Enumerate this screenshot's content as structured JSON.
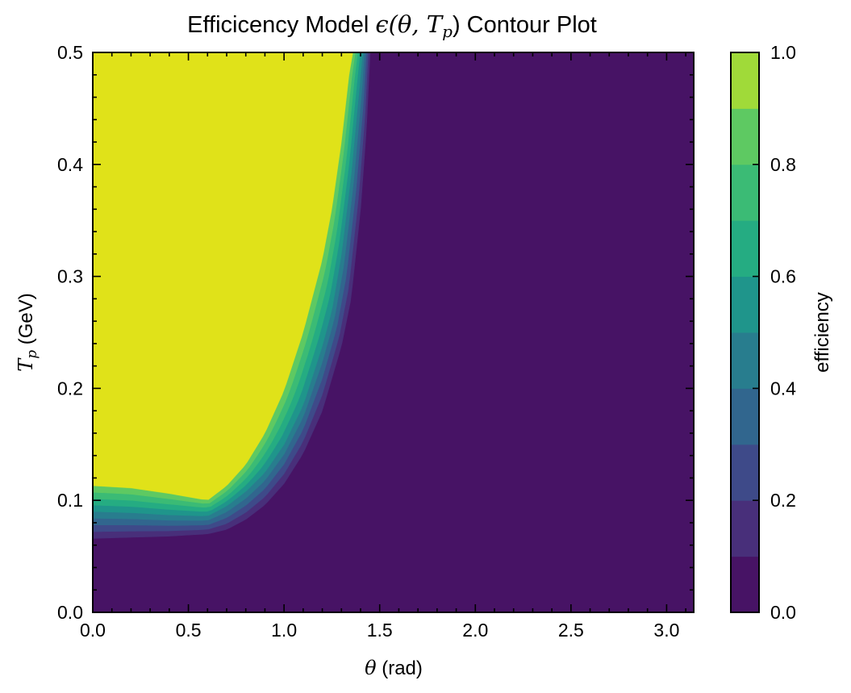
{
  "chart_data": {
    "type": "heatmap",
    "subtype": "filled-contour",
    "title_prefix": "Efficicency Model ",
    "title_math": "ϵ(θ, T",
    "title_math_sub": "p",
    "title_suffix": ") Contour Plot",
    "xlabel_sym": "θ",
    "xlabel_rest": " (rad)",
    "ylabel_sym": "T",
    "ylabel_sub": "p",
    "ylabel_rest": " (GeV)",
    "colorbar_label": "efficiency",
    "xlim": [
      0,
      3.1416
    ],
    "ylim": [
      0,
      0.5
    ],
    "xticks": [
      0,
      0.5,
      1,
      1.5,
      2,
      2.5,
      3
    ],
    "xtick_labels": [
      "0.0",
      "0.5",
      "1.0",
      "1.5",
      "2.0",
      "2.5",
      "3.0"
    ],
    "yticks": [
      0,
      0.1,
      0.2,
      0.3,
      0.4,
      0.5
    ],
    "ytick_labels": [
      "0.0",
      "0.1",
      "0.2",
      "0.3",
      "0.4",
      "0.5"
    ],
    "colorbar_ticks": [
      0,
      0.2,
      0.4,
      0.6,
      0.8,
      1.0
    ],
    "colorbar_tick_labels": [
      "0.0",
      "0.2",
      "0.4",
      "0.6",
      "0.8",
      "1.0"
    ],
    "levels": [
      0,
      0.1,
      0.2,
      0.3,
      0.4,
      0.5,
      0.6,
      0.7,
      0.8,
      0.9,
      1.0
    ],
    "level_colors": [
      "#471365",
      "#482f7a",
      "#3e4a89",
      "#31668e",
      "#287d8e",
      "#1f958b",
      "#25ac82",
      "#3bbb75",
      "#5ec962",
      "#a0da39",
      "#e0e219"
    ],
    "contours": [
      {
        "level": 0.9,
        "points": [
          [
            0,
            0.113
          ],
          [
            0.2,
            0.111
          ],
          [
            0.4,
            0.106
          ],
          [
            0.6,
            0.1
          ],
          [
            0.7,
            0.113
          ],
          [
            0.8,
            0.132
          ],
          [
            0.9,
            0.16
          ],
          [
            1.0,
            0.198
          ],
          [
            1.1,
            0.25
          ],
          [
            1.2,
            0.315
          ],
          [
            1.25,
            0.36
          ],
          [
            1.3,
            0.42
          ],
          [
            1.34,
            0.48
          ],
          [
            1.36,
            0.5
          ]
        ]
      },
      {
        "level": 0.5,
        "points": [
          [
            0,
            0.09
          ],
          [
            0.2,
            0.089
          ],
          [
            0.4,
            0.087
          ],
          [
            0.6,
            0.086
          ],
          [
            0.7,
            0.095
          ],
          [
            0.8,
            0.108
          ],
          [
            0.9,
            0.125
          ],
          [
            1.0,
            0.15
          ],
          [
            1.1,
            0.185
          ],
          [
            1.2,
            0.238
          ],
          [
            1.25,
            0.27
          ],
          [
            1.3,
            0.32
          ],
          [
            1.35,
            0.39
          ],
          [
            1.4,
            0.48
          ],
          [
            1.41,
            0.5
          ]
        ]
      },
      {
        "level": 0.1,
        "points": [
          [
            0,
            0.066
          ],
          [
            0.2,
            0.067
          ],
          [
            0.4,
            0.068
          ],
          [
            0.6,
            0.07
          ],
          [
            0.7,
            0.074
          ],
          [
            0.8,
            0.083
          ],
          [
            0.9,
            0.096
          ],
          [
            1.0,
            0.115
          ],
          [
            1.1,
            0.142
          ],
          [
            1.2,
            0.18
          ],
          [
            1.3,
            0.238
          ],
          [
            1.35,
            0.28
          ],
          [
            1.4,
            0.36
          ],
          [
            1.43,
            0.43
          ],
          [
            1.45,
            0.5
          ]
        ]
      }
    ]
  }
}
